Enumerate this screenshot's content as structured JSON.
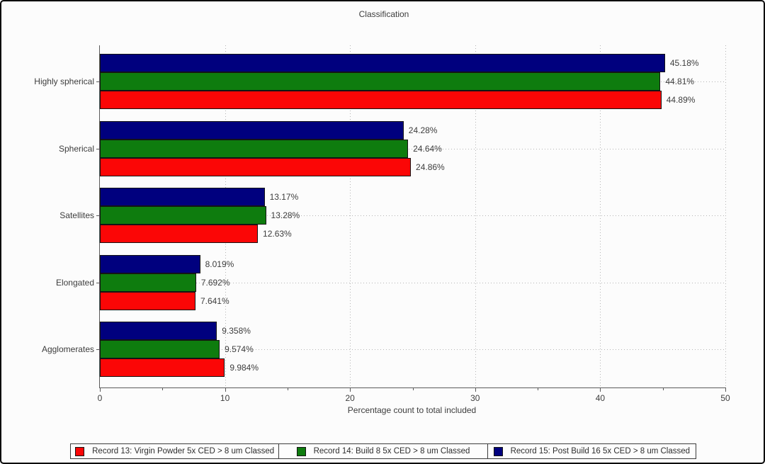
{
  "title": "Classification",
  "x_axis_title": "Percentage count to total included",
  "chart_data": {
    "type": "bar",
    "orientation": "horizontal",
    "title": "Classification",
    "xlabel": "Percentage count to total included",
    "ylabel": "",
    "xlim": [
      0,
      50
    ],
    "xticks": [
      0,
      10,
      20,
      30,
      40,
      50
    ],
    "minor_xticks": [
      5,
      15,
      25,
      35,
      45
    ],
    "grid": "dotted",
    "legend_position": "bottom",
    "categories": [
      "Highly spherical",
      "Spherical",
      "Satellites",
      "Elongated",
      "Agglomerates"
    ],
    "series": [
      {
        "name": "Record 13: Virgin Powder 5x CED > 8 um Classed",
        "color": "#fb0606",
        "values": [
          44.89,
          24.86,
          12.63,
          7.641,
          9.984
        ],
        "labels": [
          "44.89%",
          "24.86%",
          "12.63%",
          "7.641%",
          "9.984%"
        ]
      },
      {
        "name": "Record 14: Build 8 5x CED > 8 um Classed",
        "color": "#0e7c0e",
        "values": [
          44.81,
          24.64,
          13.28,
          7.692,
          9.574
        ],
        "labels": [
          "44.81%",
          "24.64%",
          "13.28%",
          "7.692%",
          "9.574%"
        ]
      },
      {
        "name": "Record 15: Post Build 16 5x CED > 8 um Classed",
        "color": "#00007e",
        "values": [
          45.18,
          24.28,
          13.17,
          8.019,
          9.358
        ],
        "labels": [
          "45.18%",
          "24.28%",
          "13.17%",
          "8.019%",
          "9.358%"
        ]
      }
    ],
    "draw_order_top_to_bottom": [
      "Record 15",
      "Record 14",
      "Record 13"
    ]
  },
  "colors": {
    "background": "#fcfcfc",
    "frame_border": "#0a0a0a",
    "axis": "#5a5a5a",
    "grid_dots": "#b4b4b4",
    "text": "#3d3d3d"
  }
}
